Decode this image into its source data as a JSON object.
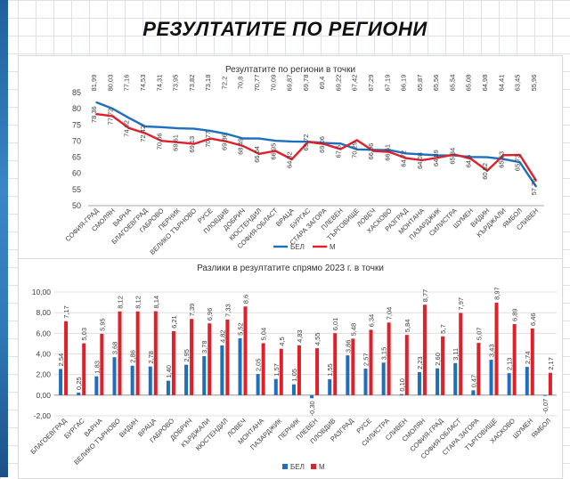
{
  "page": {
    "title": "РЕЗУЛТАТИТЕ ПО РЕГИОНИ"
  },
  "colors": {
    "bel": "#1f6fbf",
    "m": "#e0202a",
    "axis": "#8c8c8c",
    "grid": "#d9d9d9",
    "label": "#404040"
  },
  "chart_data": [
    {
      "type": "line",
      "title": "Резултатите по региони в точки",
      "categories": [
        "СОФИЯ-ГРАД",
        "СМОЛЯН",
        "ВАРНА",
        "БЛАГОЕВГРАД",
        "ГАБРОВО",
        "ПЕРНИК",
        "ВЕЛИКО ТЪРНОВО",
        "РУСЕ",
        "ПЛОВДИВ",
        "ДОБРИЧ",
        "КЮСТЕНДИЛ",
        "СОФИЯ-ОБЛАСТ",
        "ВРАЦА",
        "БУРГАС",
        "СТАРА ЗАГОРА",
        "ПЛЕВЕН",
        "ТЪРГОВИЩЕ",
        "ЛОВЕЧ",
        "ХАСКОВО",
        "РАЗГРАД",
        "МОНТАНА",
        "ПАЗАРДЖИК",
        "СИЛИСТРА",
        "ШУМЕН",
        "ВИДИН",
        "КЪРДЖАЛИ",
        "ЯМБОЛ",
        "СЛИВЕН"
      ],
      "yticks": [
        "50",
        "55",
        "60",
        "65",
        "70",
        "75",
        "80",
        "85"
      ],
      "ylim": [
        50,
        85
      ],
      "series": [
        {
          "name": "БЕЛ",
          "values": [
            81.99,
            80.03,
            77.16,
            74.53,
            74.31,
            73.95,
            73.82,
            73.18,
            72.2,
            70.8,
            70.77,
            70.09,
            69.87,
            69.78,
            69.4,
            69.22,
            67.42,
            67.29,
            67.19,
            66.19,
            65.87,
            65.56,
            65.54,
            65.08,
            64.98,
            64.41,
            63.45,
            55.96
          ],
          "labels": [
            "81,99",
            "80,03",
            "77,16",
            "74,53",
            "74,31",
            "73,95",
            "73,82",
            "73,18",
            "72,2",
            "70,8",
            "70,77",
            "70,09",
            "69,87",
            "69,78",
            "69,4",
            "69,22",
            "67,42",
            "67,29",
            "67,19",
            "66,19",
            "65,87",
            "65,56",
            "65,54",
            "65,08",
            "64,98",
            "64,41",
            "63,45",
            "55,96"
          ]
        },
        {
          "name": "М",
          "values": [
            78.36,
            77.72,
            74.02,
            72.42,
            70.06,
            69.61,
            69.13,
            70.77,
            69.86,
            68.49,
            66.04,
            66.95,
            64.32,
            69.72,
            69.06,
            67.5,
            70.29,
            66.96,
            66.61,
            64.72,
            64.08,
            64.89,
            65.84,
            64.5,
            60.82,
            65.63,
            65.73,
            57.76
          ],
          "labels": [
            "78,36",
            "77,72",
            "74,02",
            "72,42",
            "70,06",
            "69,61",
            "69,13",
            "70,77",
            "69,86",
            "68,49",
            "66,04",
            "66,95",
            "64,32",
            "69,72",
            "69,06",
            "67,5",
            "70,29",
            "66,96",
            "66,61",
            "64,72",
            "64,08",
            "64,89",
            "65,84",
            "64,5",
            "60,82",
            "65,63",
            "65,73",
            "57,76"
          ]
        }
      ],
      "legend_position": "bottom"
    },
    {
      "type": "bar",
      "title": "Разлики в резултатите спрямо 2023 г. в точки",
      "categories": [
        "БЛАГОЕВГРАД",
        "БУРГАС",
        "ВАРНА",
        "ВЕЛИКО ТЪРНОВО",
        "ВИДИН",
        "ВРАЦА",
        "ГАБРОВО",
        "ДОБРИЧ",
        "КЪРДЖАЛИ",
        "КЮСТЕНДИЛ",
        "ЛОВЕЧ",
        "МОНТАНА",
        "ПАЗАРДЖИК",
        "ПЕРНИК",
        "ПЛЕВЕН",
        "ПЛОВДИВ",
        "РАЗГРАД",
        "РУСЕ",
        "СИЛИСТРА",
        "СЛИВЕН",
        "СМОЛЯН",
        "СОФИЯ-ГРАД",
        "СОФИЯ-ОБЛАСТ",
        "СТАРА ЗАГОРА",
        "ТЪРГОВИЩЕ",
        "ХАСКОВО",
        "ШУМЕН",
        "ЯМБОЛ"
      ],
      "yticks": [
        "-2,00",
        "0,00",
        "2,00",
        "4,00",
        "6,00",
        "8,00",
        "10,00"
      ],
      "ylim": [
        -2,
        10
      ],
      "series": [
        {
          "name": "БЕЛ",
          "values": [
            2.54,
            0.25,
            1.83,
            3.68,
            2.86,
            2.78,
            1.4,
            2.95,
            3.78,
            4.82,
            5.52,
            2.05,
            1.57,
            1.05,
            -0.3,
            1.55,
            3.86,
            2.57,
            3.15,
            0.1,
            2.23,
            2.6,
            3.11,
            0.47,
            3.43,
            2.13,
            2.74,
            -0.07
          ],
          "labels": [
            "2,54",
            "0,25",
            "1,83",
            "3,68",
            "2,86",
            "2,78",
            "1,40",
            "2,95",
            "3,78",
            "4,82",
            "5,52",
            "2,05",
            "1,57",
            "1,05",
            "-0,30",
            "1,55",
            "3,86",
            "2,57",
            "3,15",
            "0,10",
            "2,23",
            "2,60",
            "3,11",
            "0,47",
            "3,43",
            "2,13",
            "2,74",
            "-0,07"
          ]
        },
        {
          "name": "М",
          "values": [
            7.17,
            5.03,
            5.95,
            8.12,
            8.12,
            8.14,
            6.21,
            7.39,
            6.96,
            7.33,
            8.6,
            5.04,
            4.5,
            4.83,
            4.55,
            6.01,
            5.48,
            6.34,
            7.04,
            5.84,
            8.77,
            5.7,
            7.97,
            5.07,
            8.97,
            6.89,
            6.46,
            2.17
          ],
          "labels": [
            "7,17",
            "5,03",
            "5,95",
            "8,12",
            "8,12",
            "8,14",
            "6,21",
            "7,39",
            "6,96",
            "7,33",
            "8,6",
            "5,04",
            "4,5",
            "4,83",
            "4,55",
            "6,01",
            "5,48",
            "6,34",
            "7,04",
            "5,84",
            "8,77",
            "5,7",
            "7,97",
            "5,07",
            "8,97",
            "6,89",
            "6,46",
            "2,17"
          ]
        }
      ],
      "legend_position": "bottom"
    }
  ]
}
